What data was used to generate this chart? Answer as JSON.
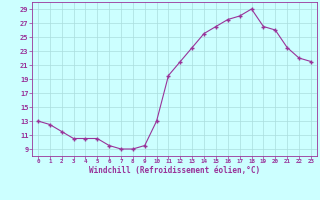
{
  "x": [
    0,
    1,
    2,
    3,
    4,
    5,
    6,
    7,
    8,
    9,
    10,
    11,
    12,
    13,
    14,
    15,
    16,
    17,
    18,
    19,
    20,
    21,
    22,
    23
  ],
  "y": [
    13,
    12.5,
    11.5,
    10.5,
    10.5,
    10.5,
    9.5,
    9,
    9,
    9.5,
    13,
    19.5,
    21.5,
    23.5,
    25.5,
    26.5,
    27.5,
    28,
    29,
    26.5,
    26,
    23.5,
    22,
    21.5
  ],
  "line_color": "#993399",
  "marker_color": "#993399",
  "bg_color": "#ccffff",
  "grid_color": "#aadddd",
  "xlabel": "Windchill (Refroidissement éolien,°C)",
  "xlabel_color": "#993399",
  "tick_color": "#993399",
  "ylim": [
    8,
    30
  ],
  "yticks": [
    9,
    11,
    13,
    15,
    17,
    19,
    21,
    23,
    25,
    27,
    29
  ],
  "xticks": [
    0,
    1,
    2,
    3,
    4,
    5,
    6,
    7,
    8,
    9,
    10,
    11,
    12,
    13,
    14,
    15,
    16,
    17,
    18,
    19,
    20,
    21,
    22,
    23
  ],
  "xlim": [
    -0.5,
    23.5
  ]
}
